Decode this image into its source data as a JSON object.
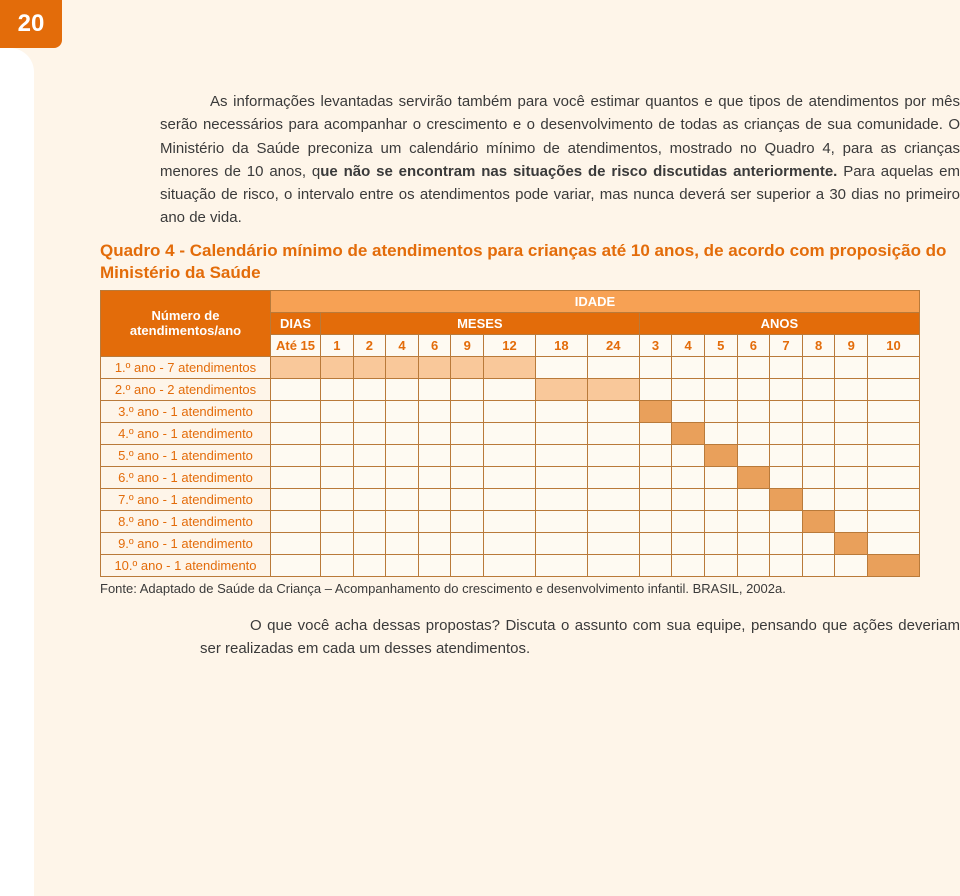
{
  "page_number": "20",
  "para1": "As informações levantadas servirão também para você estimar quantos e que tipos de atendimentos por mês serão necessários para acompanhar o crescimento e o desenvolvimento de todas as crianças de sua comunidade. O Ministério da Saúde preconiza um calendário mínimo de atendimentos, mostrado no Quadro 4, para as crianças menores de 10 anos, q",
  "para1_bold": "ue não se encontram nas situações de risco discutidas anteriormente.",
  "para1_rest": " Para aquelas em situação de risco, o intervalo entre os atendimentos pode variar, mas nunca deverá ser superior a 30 dias no primeiro ano de vida.",
  "quadro_title": "Quadro 4 - Calendário mínimo de atendimentos para crianças até 10 anos, de acordo com proposição do Ministério da Saúde",
  "table": {
    "row_header_l1": "Número de",
    "row_header_l2": "atendimentos/ano",
    "idade": "IDADE",
    "dias": "DIAS",
    "meses": "MESES",
    "anos": "ANOS",
    "ate15": "Até 15",
    "cols": [
      "1",
      "2",
      "4",
      "6",
      "9",
      "12",
      "18",
      "24",
      "3",
      "4",
      "5",
      "6",
      "7",
      "8",
      "9",
      "10"
    ],
    "rows": [
      {
        "label": "1.º ano - 7 atendimentos",
        "fill": [
          0,
          1,
          2,
          3,
          4,
          5,
          6
        ]
      },
      {
        "label": "2.º ano - 2 atendimentos",
        "fill": [
          7,
          8
        ]
      },
      {
        "label": "3.º ano - 1 atendimento",
        "fill": [
          9
        ]
      },
      {
        "label": "4.º ano - 1 atendimento",
        "fill": [
          10
        ]
      },
      {
        "label": "5.º ano - 1 atendimento",
        "fill": [
          11
        ]
      },
      {
        "label": "6.º ano - 1 atendimento",
        "fill": [
          12
        ]
      },
      {
        "label": "7.º ano - 1 atendimento",
        "fill": [
          13
        ]
      },
      {
        "label": "8.º ano - 1 atendimento",
        "fill": [
          14
        ]
      },
      {
        "label": "9.º ano - 1 atendimento",
        "fill": [
          15
        ]
      },
      {
        "label": "10.º ano - 1 atendimento",
        "fill": [
          16
        ]
      }
    ]
  },
  "source": "Fonte: Adaptado de Saúde da Criança – Acompanhamento do crescimento e desenvolvimento infantil. BRASIL, 2002a.",
  "closing": "O que você acha dessas propostas? Discuta o assunto com sua equipe, pensando que ações deveriam ser realizadas em cada um desses atendimentos.",
  "colors": {
    "page_bg": "#fef5e9",
    "accent": "#e36c0a",
    "cell_fill": "#f9c89a",
    "cell_strong": "#e9a05b",
    "border": "#b97a3a"
  }
}
